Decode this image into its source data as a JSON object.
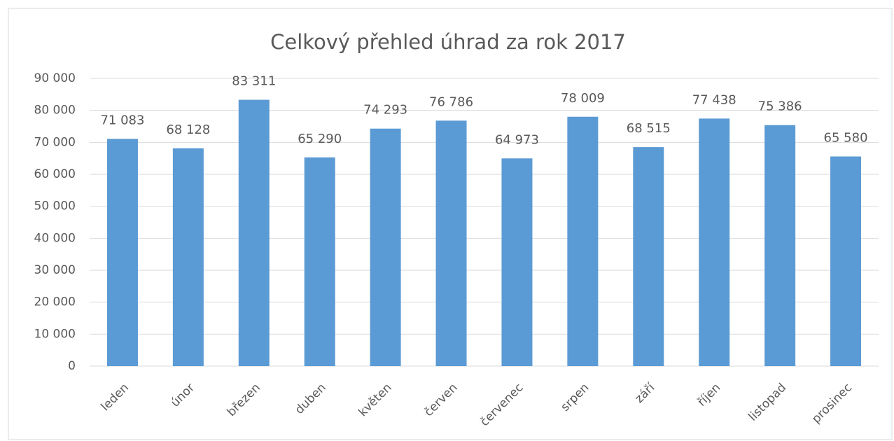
{
  "chart_data": {
    "type": "bar",
    "title": "Celkový přehled úhrad za rok 2017",
    "categories": [
      "leden",
      "únor",
      "březen",
      "duben",
      "květen",
      "červen",
      "červenec",
      "srpen",
      "září",
      "říjen",
      "listopad",
      "prosinec"
    ],
    "values": [
      71083,
      68128,
      83311,
      65290,
      74293,
      76786,
      64973,
      78009,
      68515,
      77438,
      75386,
      65580
    ],
    "value_labels": [
      "71 083",
      "68 128",
      "83 311",
      "65 290",
      "74 293",
      "76 786",
      "64 973",
      "78 009",
      "68 515",
      "77 438",
      "75 386",
      "65 580"
    ],
    "color": "#5b9bd5",
    "ylim": [
      0,
      90000
    ],
    "yticks": [
      0,
      {
        "value": 10000,
        "label": "10 000"
      },
      {
        "value": 20000,
        "label": "20 000"
      },
      {
        "value": 30000,
        "label": "30 000"
      },
      {
        "value": 40000,
        "label": "40 000"
      },
      {
        "value": 50000,
        "label": "50 000"
      },
      {
        "value": 60000,
        "label": "60 000"
      },
      {
        "value": 70000,
        "label": "70 000"
      },
      {
        "value": 80000,
        "label": "80 000"
      },
      {
        "value": 90000,
        "label": "90 000"
      }
    ],
    "grid": true
  }
}
